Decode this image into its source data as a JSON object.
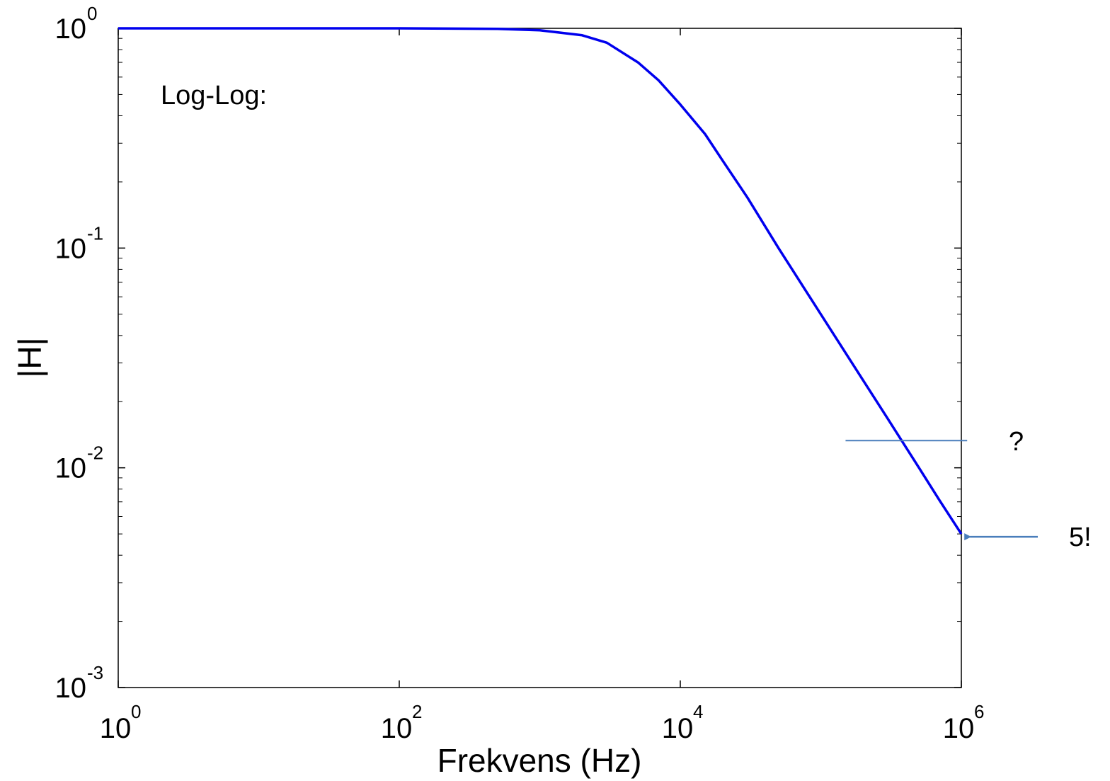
{
  "chart_data": {
    "type": "line",
    "xscale": "log",
    "yscale": "log",
    "xlabel": "Frekvens (Hz)",
    "ylabel": "|H|",
    "xlim": [
      1,
      1000000
    ],
    "ylim": [
      0.001,
      1
    ],
    "grid": false,
    "x_ticks": [
      {
        "base": "10",
        "exp": "0",
        "value": 1
      },
      {
        "base": "10",
        "exp": "2",
        "value": 100
      },
      {
        "base": "10",
        "exp": "4",
        "value": 10000
      },
      {
        "base": "10",
        "exp": "6",
        "value": 1000000
      }
    ],
    "y_ticks": [
      {
        "base": "10",
        "exp": "0",
        "value": 1
      },
      {
        "base": "10",
        "exp": "-1",
        "value": 0.1
      },
      {
        "base": "10",
        "exp": "-2",
        "value": 0.01
      },
      {
        "base": "10",
        "exp": "-3",
        "value": 0.001
      }
    ],
    "series": [
      {
        "color": "#0000ee",
        "x": [
          1,
          10,
          100,
          500,
          1000,
          2000,
          3000,
          5000,
          7000,
          10000,
          15000,
          20000,
          30000,
          50000,
          100000,
          200000,
          300000,
          500000,
          700000,
          1000000
        ],
        "y": [
          1,
          1,
          1,
          0.995,
          0.98,
          0.93,
          0.86,
          0.7,
          0.58,
          0.45,
          0.33,
          0.25,
          0.17,
          0.1,
          0.05,
          0.025,
          0.0167,
          0.01,
          0.0071,
          0.005
        ]
      }
    ],
    "annotations": [
      {
        "id": "title",
        "text": "Log-Log:"
      },
      {
        "id": "question",
        "text": "?",
        "line_y": 0.0133,
        "line_x_range": [
          150000,
          1100000
        ]
      },
      {
        "id": "endpoint",
        "text": "5!",
        "arrow_y": 0.005,
        "arrow_x_range": [
          1050000,
          3500000
        ]
      }
    ],
    "annotation_color": "#4a7ebb"
  }
}
